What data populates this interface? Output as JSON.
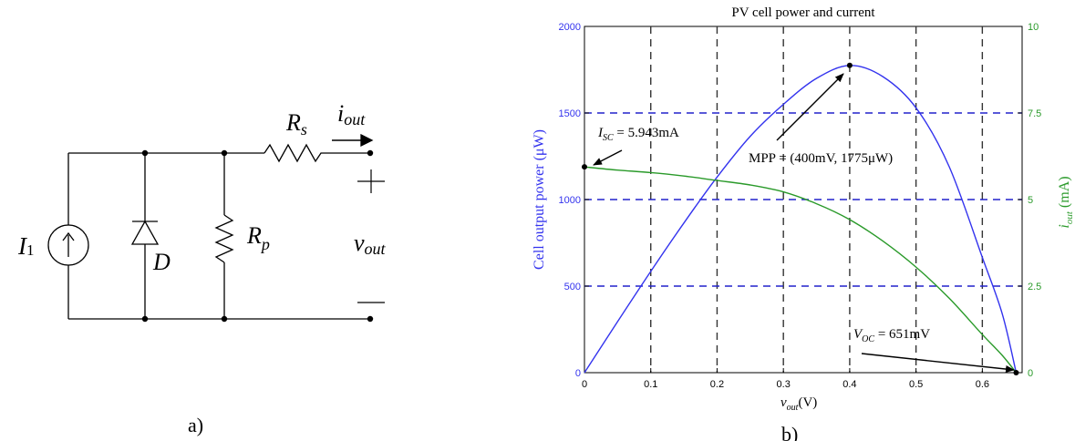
{
  "circuit": {
    "current_source_label": "I",
    "current_source_sub": "1",
    "diode_label": "D",
    "rp_label": "R",
    "rp_sub": "p",
    "rs_label": "R",
    "rs_sub": "s",
    "iout_label": "i",
    "iout_sub": "out",
    "plus_sign": "+",
    "minus_sign": "—",
    "vout_label": "v",
    "vout_sub": "out",
    "panel_label": "a)"
  },
  "chart_data": {
    "type": "line",
    "title": "PV cell power and current",
    "xlabel_main": "v",
    "xlabel_sub": "out",
    "xlabel_unit": "(V)",
    "ylabel_left": "Cell output power (μW)",
    "ylabel_right_main": "i",
    "ylabel_right_sub": "out",
    "ylabel_right_unit": " (mA)",
    "xlim": [
      0,
      0.66
    ],
    "ylim_left": [
      0,
      2000
    ],
    "ylim_right": [
      0,
      10
    ],
    "x_ticks": [
      "0",
      "0.1",
      "0.2",
      "0.3",
      "0.4",
      "0.5",
      "0.6"
    ],
    "y_left_ticks": [
      "0",
      "500",
      "1000",
      "1500",
      "2000"
    ],
    "y_right_ticks": [
      "0",
      "2.5",
      "5",
      "7.5",
      "10"
    ],
    "grid": "dashed",
    "colors": {
      "power": "#3333ee",
      "current": "#2a9a2a",
      "vgrid": "#333333",
      "hgrid": "#2222cc"
    },
    "series": [
      {
        "axis": "left",
        "x": [
          0,
          0.05,
          0.1,
          0.15,
          0.2,
          0.25,
          0.3,
          0.35,
          0.4,
          0.45,
          0.5,
          0.55,
          0.6,
          0.63,
          0.651
        ],
        "values": [
          0,
          295,
          585,
          865,
          1130,
          1365,
          1550,
          1700,
          1775,
          1710,
          1530,
          1190,
          665,
          340,
          0
        ]
      },
      {
        "axis": "right",
        "x": [
          0,
          0.05,
          0.1,
          0.15,
          0.2,
          0.25,
          0.3,
          0.35,
          0.4,
          0.45,
          0.5,
          0.55,
          0.6,
          0.63,
          0.651
        ],
        "values": [
          5.943,
          5.85,
          5.78,
          5.68,
          5.55,
          5.42,
          5.22,
          4.88,
          4.42,
          3.8,
          3.05,
          2.15,
          1.1,
          0.5,
          0
        ]
      }
    ],
    "annotations": [
      {
        "main": "I",
        "sub": "SC",
        "text": " = 5.943mA"
      },
      {
        "text": "MPP = (400mV, 1775μW)"
      },
      {
        "main": "V",
        "sub": "OC",
        "text": " = 651mV"
      }
    ],
    "panel_label": "b)"
  }
}
